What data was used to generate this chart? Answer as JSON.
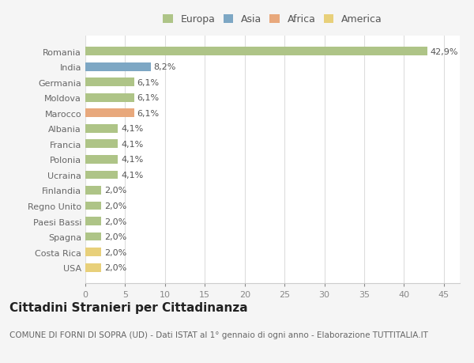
{
  "categories": [
    "Romania",
    "India",
    "Germania",
    "Moldova",
    "Marocco",
    "Albania",
    "Francia",
    "Polonia",
    "Ucraina",
    "Finlandia",
    "Regno Unito",
    "Paesi Bassi",
    "Spagna",
    "Costa Rica",
    "USA"
  ],
  "values": [
    42.9,
    8.2,
    6.1,
    6.1,
    6.1,
    4.1,
    4.1,
    4.1,
    4.1,
    2.0,
    2.0,
    2.0,
    2.0,
    2.0,
    2.0
  ],
  "labels": [
    "42,9%",
    "8,2%",
    "6,1%",
    "6,1%",
    "6,1%",
    "4,1%",
    "4,1%",
    "4,1%",
    "4,1%",
    "2,0%",
    "2,0%",
    "2,0%",
    "2,0%",
    "2,0%",
    "2,0%"
  ],
  "colors": [
    "#aec487",
    "#7da7c4",
    "#aec487",
    "#aec487",
    "#e8a87c",
    "#aec487",
    "#aec487",
    "#aec487",
    "#aec487",
    "#aec487",
    "#aec487",
    "#aec487",
    "#aec487",
    "#e8d07a",
    "#e8d07a"
  ],
  "legend_labels": [
    "Europa",
    "Asia",
    "Africa",
    "America"
  ],
  "legend_colors": [
    "#aec487",
    "#7da7c4",
    "#e8a87c",
    "#e8d07a"
  ],
  "xlim": [
    0,
    47
  ],
  "xticks": [
    0,
    5,
    10,
    15,
    20,
    25,
    30,
    35,
    40,
    45
  ],
  "title": "Cittadini Stranieri per Cittadinanza",
  "subtitle": "COMUNE DI FORNI DI SOPRA (UD) - Dati ISTAT al 1° gennaio di ogni anno - Elaborazione TUTTITALIA.IT",
  "bg_color": "#f5f5f5",
  "plot_bg_color": "#ffffff",
  "bar_height": 0.55,
  "title_fontsize": 11,
  "subtitle_fontsize": 7.5,
  "tick_fontsize": 8,
  "label_fontsize": 8,
  "legend_fontsize": 9
}
